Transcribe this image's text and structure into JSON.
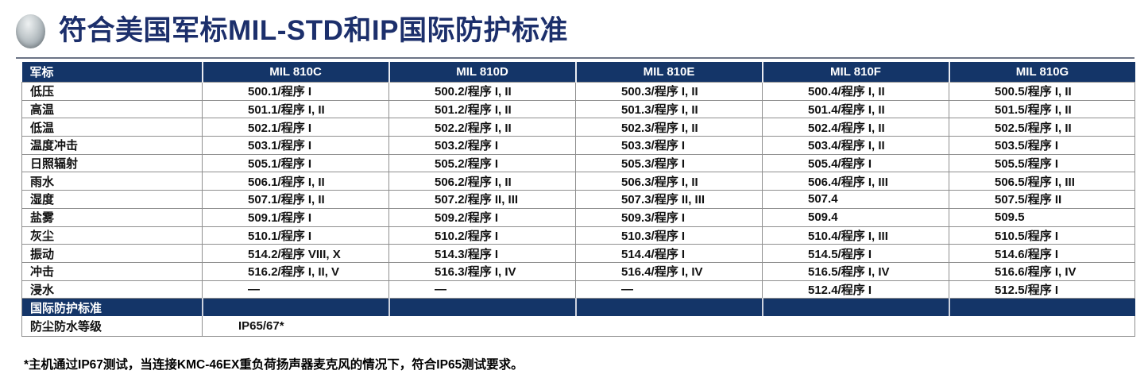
{
  "title": "符合美国军标MIL-STD和IP国际防护标准",
  "colors": {
    "header_navy": "#143568",
    "title_navy": "#1c2f6b",
    "border_gray": "#8f8f8f",
    "sphere_silver": "#98a2a8"
  },
  "icons": {
    "brand_sphere": "silver-sphere-logo"
  },
  "table": {
    "header": [
      "军标",
      "MIL 810C",
      "MIL 810D",
      "MIL 810E",
      "MIL 810F",
      "MIL 810G"
    ],
    "rows": [
      {
        "label": "低压",
        "cells": [
          "500.1/程序 I",
          "500.2/程序 I, II",
          "500.3/程序 I, II",
          "500.4/程序 I, II",
          "500.5/程序 I, II"
        ]
      },
      {
        "label": "高温",
        "cells": [
          "501.1/程序 I, II",
          "501.2/程序 I, II",
          "501.3/程序 I, II",
          "501.4/程序 I, II",
          "501.5/程序 I, II"
        ]
      },
      {
        "label": "低温",
        "cells": [
          "502.1/程序 I",
          "502.2/程序 I, II",
          "502.3/程序 I, II",
          "502.4/程序 I, II",
          "502.5/程序 I, II"
        ]
      },
      {
        "label": "温度冲击",
        "cells": [
          "503.1/程序 I",
          "503.2/程序 I",
          "503.3/程序 I",
          "503.4/程序 I, II",
          "503.5/程序 I"
        ]
      },
      {
        "label": "日照辐射",
        "cells": [
          "505.1/程序 I",
          "505.2/程序 I",
          "505.3/程序 I",
          "505.4/程序 I",
          "505.5/程序 I"
        ]
      },
      {
        "label": "雨水",
        "cells": [
          "506.1/程序 I, II",
          "506.2/程序 I, II",
          "506.3/程序 I, II",
          "506.4/程序 I, III",
          "506.5/程序 I, III"
        ]
      },
      {
        "label": "湿度",
        "cells": [
          "507.1/程序 I, II",
          "507.2/程序 II, III",
          "507.3/程序 II, III",
          "507.4",
          "507.5/程序 II"
        ]
      },
      {
        "label": "盐雾",
        "cells": [
          "509.1/程序 I",
          "509.2/程序 I",
          "509.3/程序 I",
          "509.4",
          "509.5"
        ]
      },
      {
        "label": "灰尘",
        "cells": [
          "510.1/程序 I",
          "510.2/程序 I",
          "510.3/程序 I",
          "510.4/程序 I, III",
          "510.5/程序 I"
        ]
      },
      {
        "label": "振动",
        "cells": [
          "514.2/程序 VIII, X",
          "514.3/程序 I",
          "514.4/程序 I",
          "514.5/程序 I",
          "514.6/程序 I"
        ]
      },
      {
        "label": "冲击",
        "cells": [
          "516.2/程序 I, II, V",
          "516.3/程序 I, IV",
          "516.4/程序 I, IV",
          "516.5/程序 I, IV",
          "516.6/程序 I, IV"
        ]
      },
      {
        "label": "浸水",
        "cells": [
          "—",
          "—",
          "—",
          "512.4/程序 I",
          "512.5/程序 I"
        ]
      }
    ],
    "section_header": "国际防护标准",
    "ip_row": {
      "label": "防尘防水等级",
      "value": "IP65/67*"
    }
  },
  "footnote": "*主机通过IP67测试，当连接KMC-46EX重负荷扬声器麦克风的情况下，符合IP65测试要求。"
}
